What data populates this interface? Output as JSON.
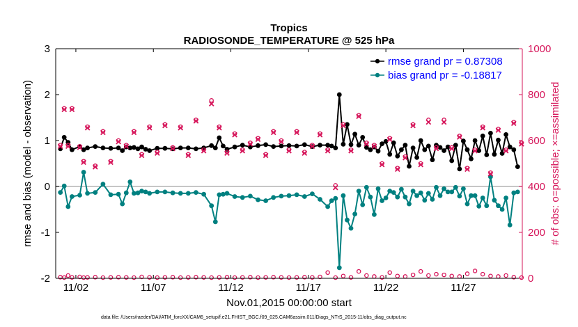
{
  "chart_data": {
    "type": "line",
    "title": "Tropics",
    "subtitle": "RADIOSONDE_TEMPERATURE @ 525 hPa",
    "xlabel": "Nov.01,2015 00:00:00 start",
    "ylabel": "rmse and bias (model - observation)",
    "ylabel_right": "# of obs: o=possible; ×=assimilated",
    "footnote": "data file: /Users/raeder/DAI/ATM_forcXX/CAM6_setup/f.e21.FHIST_BGC.f09_025.CAM6assim.011/Diags_NTrS_2015-11/obs_diag_output.nc",
    "xlim": [
      0.7,
      30.8
    ],
    "ylim": [
      -2,
      3
    ],
    "ylim_right": [
      0,
      1000
    ],
    "x_ticks": [
      {
        "value": 2,
        "label": "11/02"
      },
      {
        "value": 7,
        "label": "11/07"
      },
      {
        "value": 12,
        "label": "11/12"
      },
      {
        "value": 17,
        "label": "11/17"
      },
      {
        "value": 22,
        "label": "11/22"
      },
      {
        "value": 27,
        "label": "11/27"
      }
    ],
    "y_ticks": [
      "-2",
      "-1",
      "0",
      "1",
      "2",
      "3"
    ],
    "y_ticks_right": [
      "0",
      "200",
      "400",
      "600",
      "800",
      "1000"
    ],
    "colors": {
      "rmse": "#000000",
      "bias": "#008080",
      "obs": "#d6155a",
      "zero_line": "#b4b4b4",
      "legend_text": "#0000ff"
    },
    "legend": [
      {
        "name": "rmse grand pr = 0.87308",
        "series": "rmse"
      },
      {
        "name": "bias grand pr = -0.18817",
        "series": "bias"
      }
    ],
    "series": [
      {
        "name": "rmse",
        "axis": "left",
        "x": [
          1.0,
          1.25,
          1.5,
          1.75,
          2.25,
          2.5,
          2.75,
          3.25,
          3.75,
          4.25,
          4.75,
          5.0,
          5.25,
          5.5,
          5.75,
          6.0,
          6.25,
          6.5,
          6.75,
          7.25,
          7.75,
          8.25,
          8.75,
          9.25,
          9.75,
          10.25,
          10.75,
          11.0,
          11.25,
          11.5,
          11.75,
          12.25,
          12.75,
          13.25,
          13.75,
          14.25,
          14.75,
          15.25,
          15.75,
          16.25,
          16.75,
          17.25,
          17.75,
          18.25,
          18.5,
          18.75,
          19.0,
          19.25,
          19.5,
          19.75,
          20.0,
          20.25,
          20.5,
          20.75,
          21.0,
          21.25,
          21.5,
          21.75,
          22.0,
          22.25,
          22.5,
          22.75,
          23.0,
          23.25,
          23.5,
          23.75,
          24.0,
          24.25,
          24.5,
          24.75,
          25.0,
          25.25,
          25.5,
          25.75,
          26.0,
          26.25,
          26.5,
          26.75,
          27.0,
          27.25,
          27.5,
          27.75,
          28.0,
          28.25,
          28.5,
          28.75,
          29.0,
          29.25,
          29.5,
          29.75,
          30.0,
          30.25,
          30.5
        ],
        "values": [
          0.82,
          1.07,
          0.96,
          0.8,
          0.87,
          0.8,
          0.84,
          0.87,
          0.84,
          0.83,
          0.84,
          0.78,
          0.86,
          0.84,
          0.85,
          0.82,
          0.86,
          0.81,
          0.78,
          0.83,
          0.83,
          0.82,
          0.84,
          0.84,
          0.82,
          0.84,
          0.89,
          0.84,
          1.06,
          0.88,
          0.81,
          0.86,
          0.9,
          0.86,
          0.89,
          0.91,
          0.87,
          0.88,
          0.89,
          0.88,
          0.91,
          0.87,
          0.9,
          0.9,
          0.88,
          0.84,
          2.0,
          0.92,
          1.35,
          0.91,
          1.14,
          0.9,
          1.07,
          0.85,
          0.8,
          0.86,
          0.77,
          0.93,
          0.98,
          0.7,
          0.95,
          0.66,
          0.8,
          0.9,
          0.44,
          0.84,
          0.63,
          1.0,
          0.8,
          0.88,
          0.58,
          0.9,
          0.85,
          0.78,
          0.86,
          0.56,
          0.9,
          0.38,
          0.99,
          0.8,
          0.6,
          1.0,
          0.78,
          1.1,
          0.69,
          1.16,
          0.7,
          1.01,
          0.72,
          1.13,
          0.86,
          0.8,
          0.43
        ]
      },
      {
        "name": "bias",
        "axis": "left",
        "x": [
          1.0,
          1.25,
          1.5,
          1.75,
          2.25,
          2.5,
          2.75,
          3.25,
          3.75,
          4.25,
          4.75,
          5.0,
          5.25,
          5.5,
          5.75,
          6.0,
          6.25,
          6.5,
          6.75,
          7.25,
          7.75,
          8.25,
          8.75,
          9.25,
          9.75,
          10.25,
          10.75,
          11.0,
          11.25,
          11.5,
          11.75,
          12.25,
          12.75,
          13.25,
          13.75,
          14.25,
          14.75,
          15.25,
          15.75,
          16.25,
          16.75,
          17.25,
          17.75,
          18.25,
          18.5,
          18.75,
          19.0,
          19.25,
          19.5,
          19.75,
          20.0,
          20.25,
          20.5,
          20.75,
          21.0,
          21.25,
          21.5,
          21.75,
          22.0,
          22.25,
          22.5,
          22.75,
          23.0,
          23.25,
          23.5,
          23.75,
          24.0,
          24.25,
          24.5,
          24.75,
          25.0,
          25.25,
          25.5,
          25.75,
          26.0,
          26.25,
          26.5,
          26.75,
          27.0,
          27.25,
          27.5,
          27.75,
          28.0,
          28.25,
          28.5,
          28.75,
          29.0,
          29.25,
          29.5,
          29.75,
          30.0,
          30.25,
          30.5
        ],
        "values": [
          -0.13,
          0.01,
          -0.44,
          -0.22,
          -0.19,
          0.31,
          -0.15,
          -0.13,
          0.05,
          -0.18,
          -0.17,
          -0.38,
          -0.14,
          0.1,
          -0.15,
          -0.14,
          -0.1,
          -0.12,
          -0.15,
          -0.12,
          -0.12,
          -0.14,
          -0.15,
          -0.15,
          -0.13,
          -0.17,
          -0.42,
          -0.77,
          -0.18,
          -0.17,
          -0.15,
          -0.22,
          -0.24,
          -0.21,
          -0.29,
          -0.31,
          -0.24,
          -0.21,
          -0.2,
          -0.18,
          -0.22,
          -0.16,
          -0.28,
          -0.44,
          -0.31,
          -0.26,
          -1.77,
          -0.2,
          -0.73,
          -0.91,
          -0.6,
          -0.1,
          -0.4,
          -0.02,
          -0.23,
          -0.61,
          -0.05,
          -0.31,
          -0.25,
          -0.1,
          -0.13,
          -0.23,
          -0.06,
          -0.23,
          -0.38,
          -0.1,
          -0.2,
          -0.14,
          -0.3,
          -0.15,
          -0.28,
          -0.02,
          -0.2,
          -0.05,
          -0.12,
          -0.12,
          -0.02,
          -0.21,
          -0.05,
          -0.38,
          -0.2,
          -0.2,
          -0.43,
          -0.25,
          -0.42,
          0.21,
          -0.3,
          -0.42,
          -0.5,
          -0.25,
          -0.84,
          -0.14,
          -0.12
        ]
      },
      {
        "name": "obs possible",
        "axis": "right",
        "marker": "circle",
        "x": [
          1.0,
          1.25,
          1.5,
          1.75,
          2.25,
          2.5,
          2.75,
          3.25,
          3.75,
          4.25,
          4.75,
          5.25,
          5.75,
          6.25,
          6.75,
          7.25,
          7.75,
          8.25,
          8.75,
          9.25,
          9.75,
          10.25,
          10.75,
          11.25,
          11.75,
          12.25,
          12.75,
          13.25,
          13.75,
          14.25,
          14.75,
          15.25,
          15.75,
          16.25,
          16.75,
          17.25,
          17.75,
          18.25,
          18.75,
          19.25,
          19.75,
          20.25,
          20.75,
          21.25,
          21.75,
          22.25,
          22.75,
          23.25,
          23.75,
          24.25,
          24.75,
          25.25,
          25.75,
          26.25,
          26.75,
          27.25,
          27.75,
          28.25,
          28.75,
          29.25,
          29.75,
          30.25,
          30.75
        ],
        "values": [
          580,
          740,
          580,
          740,
          575,
          510,
          660,
          490,
          640,
          510,
          600,
          580,
          640,
          540,
          660,
          550,
          670,
          570,
          660,
          540,
          690,
          560,
          775,
          660,
          550,
          630,
          560,
          590,
          610,
          540,
          640,
          600,
          560,
          640,
          550,
          580,
          630,
          560,
          405,
          670,
          560,
          710,
          590,
          580,
          500,
          610,
          480,
          530,
          670,
          500,
          690,
          570,
          690,
          570,
          620,
          480,
          560,
          660,
          460,
          650,
          560,
          680,
          590
        ]
      },
      {
        "name": "obs assimilated",
        "axis": "right",
        "marker": "x",
        "x": [
          1.0,
          1.25,
          1.5,
          1.75,
          2.25,
          2.5,
          2.75,
          3.25,
          3.75,
          4.25,
          4.75,
          5.25,
          5.75,
          6.25,
          6.75,
          7.25,
          7.75,
          8.25,
          8.75,
          9.25,
          9.75,
          10.25,
          10.75,
          11.25,
          11.75,
          12.25,
          12.75,
          13.25,
          13.75,
          14.25,
          14.75,
          15.25,
          15.75,
          16.25,
          16.75,
          17.25,
          17.75,
          18.25,
          18.75,
          19.25,
          19.75,
          20.25,
          20.75,
          21.25,
          21.75,
          22.25,
          22.75,
          23.25,
          23.75,
          24.25,
          24.75,
          25.25,
          25.75,
          26.25,
          26.75,
          27.25,
          27.75,
          28.25,
          28.75,
          29.25,
          29.75,
          30.25,
          30.75
        ],
        "values": [
          575,
          735,
          575,
          735,
          570,
          505,
          655,
          485,
          635,
          505,
          595,
          575,
          635,
          535,
          655,
          545,
          665,
          565,
          655,
          535,
          685,
          555,
          760,
          655,
          545,
          625,
          555,
          585,
          605,
          535,
          635,
          595,
          555,
          635,
          545,
          575,
          625,
          555,
          395,
          665,
          555,
          705,
          585,
          575,
          495,
          605,
          475,
          525,
          665,
          495,
          680,
          565,
          680,
          565,
          615,
          475,
          555,
          655,
          455,
          645,
          555,
          675,
          585
        ]
      },
      {
        "name": "obs possible (near zero)",
        "axis": "right",
        "marker": "circle",
        "x": [
          1.0,
          1.25,
          1.5,
          1.75,
          2.25,
          2.5,
          2.75,
          3.25,
          3.75,
          4.25,
          4.75,
          5.25,
          5.75,
          6.25,
          6.75,
          7.25,
          7.75,
          8.25,
          8.75,
          9.25,
          9.75,
          10.25,
          10.75,
          11.25,
          11.75,
          12.25,
          12.75,
          13.25,
          13.75,
          14.25,
          14.75,
          15.25,
          15.75,
          16.25,
          16.75,
          17.25,
          17.75,
          18.25,
          18.75,
          19.25,
          19.75,
          20.25,
          20.75,
          21.25,
          21.75,
          22.25,
          22.75,
          23.25,
          23.75,
          24.25,
          24.75,
          25.25,
          25.75,
          26.25,
          26.75,
          27.25,
          27.75,
          28.25,
          28.75,
          29.25,
          29.75,
          30.25,
          30.75
        ],
        "values": [
          5,
          3,
          12,
          4,
          6,
          3,
          4,
          5,
          3,
          4,
          5,
          4,
          3,
          6,
          4,
          3,
          4,
          5,
          3,
          4,
          5,
          4,
          3,
          4,
          5,
          3,
          4,
          5,
          3,
          4,
          5,
          4,
          3,
          4,
          5,
          4,
          6,
          25,
          3,
          10,
          4,
          30,
          12,
          8,
          4,
          25,
          10,
          8,
          15,
          30,
          12,
          18,
          15,
          10,
          8,
          20,
          32,
          18,
          10,
          8,
          12,
          5,
          3
        ]
      }
    ]
  }
}
